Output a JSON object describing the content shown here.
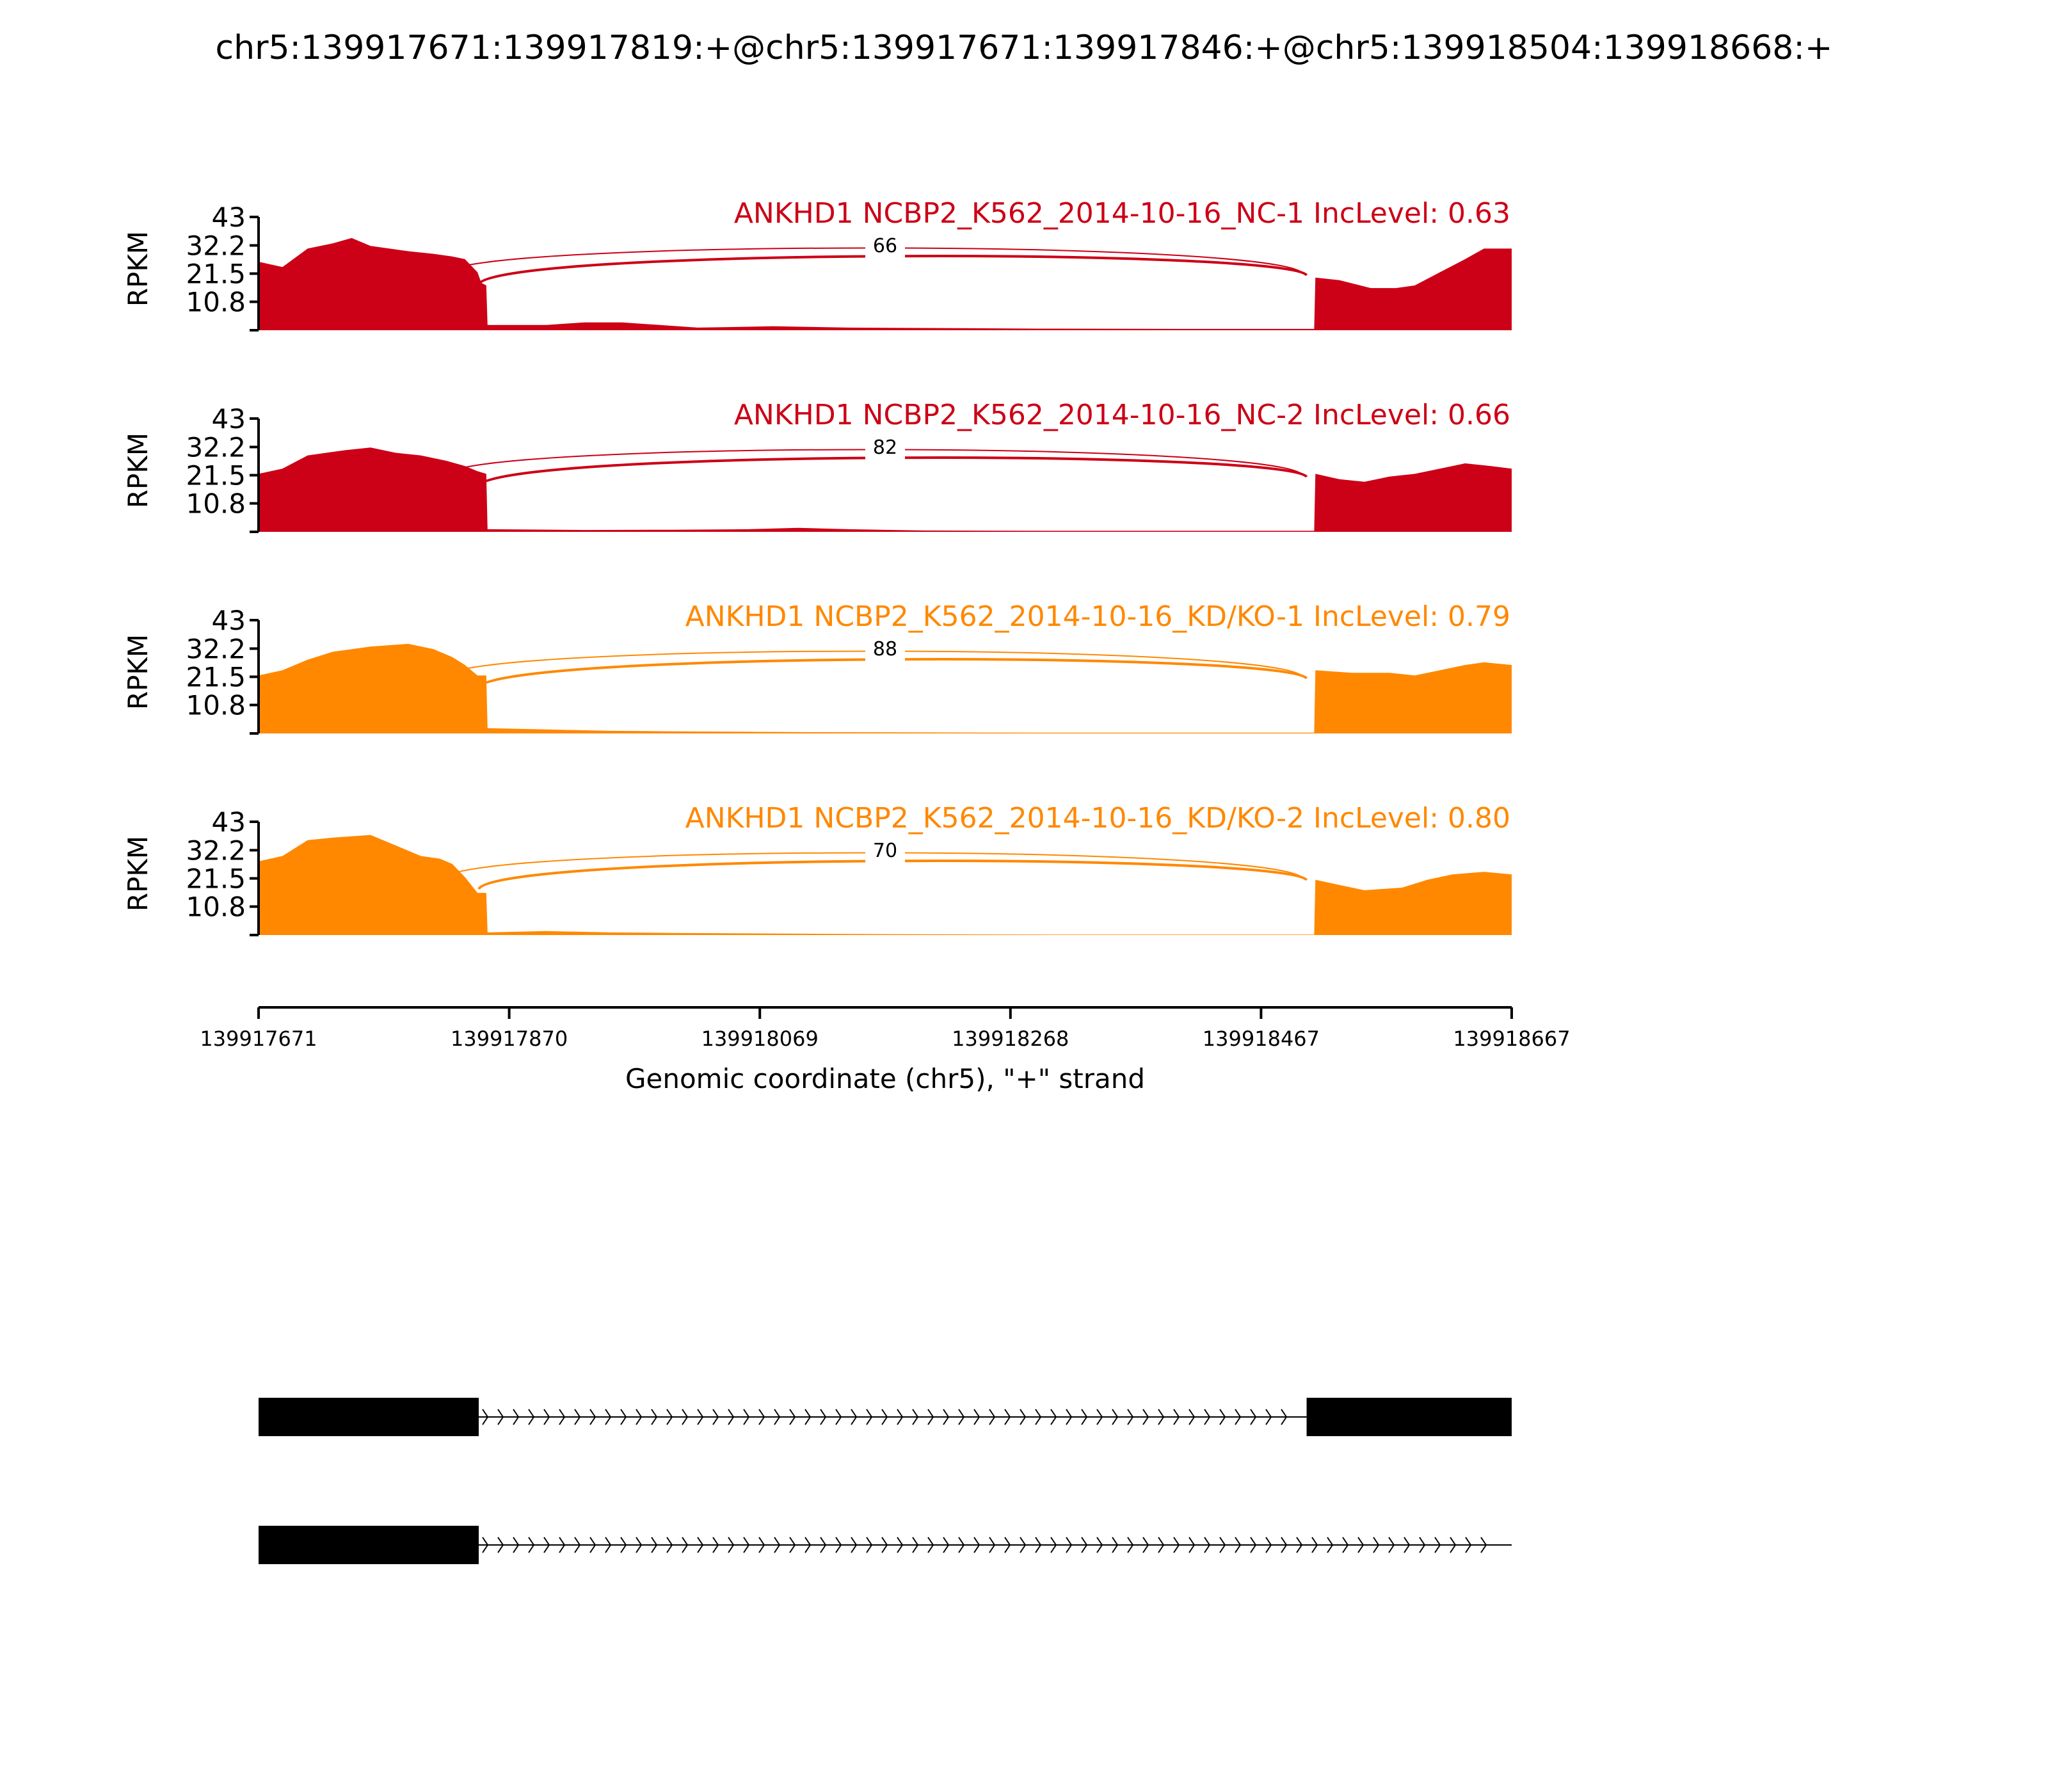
{
  "title": "chr5:139917671:139917819:+@chr5:139917671:139917846:+@chr5:139918504:139918668:+",
  "colors": {
    "nc": "#cc0016",
    "kd": "#ff8800",
    "axis": "#000000"
  },
  "x_axis": {
    "label": "Genomic coordinate (chr5), \"+\" strand",
    "range": [
      139917671,
      139918667
    ],
    "ticks": [
      "139917671",
      "139917870",
      "139918069",
      "139918268",
      "139918467",
      "139918667"
    ]
  },
  "chart_data": {
    "type": "area",
    "ylabel": "RPKM",
    "ylim": [
      0,
      43
    ],
    "yticks": [
      "43",
      "32.2",
      "21.5",
      "10.8"
    ],
    "x_range": [
      139917671,
      139918667
    ],
    "tracks": [
      {
        "name": "ANKHD1 NCBP2_K562_2014-10-16_NC-1 IncLevel: 0.63",
        "color_key": "nc",
        "junction_count": "66",
        "profile": [
          [
            139917671,
            26
          ],
          [
            139917690,
            24
          ],
          [
            139917710,
            31
          ],
          [
            139917730,
            33
          ],
          [
            139917745,
            35
          ],
          [
            139917760,
            32
          ],
          [
            139917790,
            30
          ],
          [
            139917810,
            29
          ],
          [
            139917825,
            28
          ],
          [
            139917835,
            27
          ],
          [
            139917845,
            22
          ],
          [
            139917848,
            18
          ],
          [
            139917852,
            17
          ],
          [
            139917853,
            2
          ],
          [
            139917900,
            2
          ],
          [
            139917930,
            3
          ],
          [
            139917960,
            3
          ],
          [
            139917990,
            2
          ],
          [
            139918020,
            1
          ],
          [
            139918080,
            1.5
          ],
          [
            139918140,
            1
          ],
          [
            139918230,
            0.8
          ],
          [
            139918290,
            0.6
          ],
          [
            139918400,
            0.5
          ],
          [
            139918500,
            0.5
          ],
          [
            139918510,
            0.5
          ],
          [
            139918511,
            20
          ],
          [
            139918530,
            19
          ],
          [
            139918555,
            16
          ],
          [
            139918575,
            16
          ],
          [
            139918590,
            17
          ],
          [
            139918610,
            22
          ],
          [
            139918630,
            27
          ],
          [
            139918645,
            31
          ],
          [
            139918667,
            31
          ]
        ]
      },
      {
        "name": "ANKHD1 NCBP2_K562_2014-10-16_NC-2 IncLevel: 0.66",
        "color_key": "nc",
        "junction_count": "82",
        "profile": [
          [
            139917671,
            22
          ],
          [
            139917690,
            24
          ],
          [
            139917710,
            29
          ],
          [
            139917740,
            31
          ],
          [
            139917760,
            32
          ],
          [
            139917780,
            30
          ],
          [
            139917800,
            29
          ],
          [
            139917820,
            27
          ],
          [
            139917835,
            25
          ],
          [
            139917845,
            23
          ],
          [
            139917852,
            22
          ],
          [
            139917853,
            1
          ],
          [
            139917930,
            0.7
          ],
          [
            139918000,
            0.8
          ],
          [
            139918060,
            1
          ],
          [
            139918100,
            1.5
          ],
          [
            139918140,
            1
          ],
          [
            139918200,
            0.5
          ],
          [
            139918300,
            0.4
          ],
          [
            139918400,
            0.4
          ],
          [
            139918510,
            0.4
          ],
          [
            139918511,
            22
          ],
          [
            139918530,
            20
          ],
          [
            139918550,
            19
          ],
          [
            139918570,
            21
          ],
          [
            139918590,
            22
          ],
          [
            139918610,
            24
          ],
          [
            139918630,
            26
          ],
          [
            139918650,
            25
          ],
          [
            139918667,
            24
          ]
        ]
      },
      {
        "name": "ANKHD1 NCBP2_K562_2014-10-16_KD/KO-1 IncLevel: 0.79",
        "color_key": "kd",
        "junction_count": "88",
        "profile": [
          [
            139917671,
            22
          ],
          [
            139917690,
            24
          ],
          [
            139917710,
            28
          ],
          [
            139917730,
            31
          ],
          [
            139917760,
            33
          ],
          [
            139917790,
            34
          ],
          [
            139917810,
            32
          ],
          [
            139917825,
            29
          ],
          [
            139917835,
            26
          ],
          [
            139917845,
            22
          ],
          [
            139917852,
            22
          ],
          [
            139917853,
            2
          ],
          [
            139917900,
            1.5
          ],
          [
            139917950,
            1
          ],
          [
            139918000,
            0.8
          ],
          [
            139918100,
            0.5
          ],
          [
            139918200,
            0.4
          ],
          [
            139918300,
            0.3
          ],
          [
            139918400,
            0.3
          ],
          [
            139918510,
            0.3
          ],
          [
            139918511,
            24
          ],
          [
            139918540,
            23
          ],
          [
            139918570,
            23
          ],
          [
            139918590,
            22
          ],
          [
            139918610,
            24
          ],
          [
            139918630,
            26
          ],
          [
            139918645,
            27
          ],
          [
            139918667,
            26
          ]
        ]
      },
      {
        "name": "ANKHD1 NCBP2_K562_2014-10-16_KD/KO-2 IncLevel: 0.80",
        "color_key": "kd",
        "junction_count": "70",
        "profile": [
          [
            139917671,
            28
          ],
          [
            139917690,
            30
          ],
          [
            139917710,
            36
          ],
          [
            139917730,
            37
          ],
          [
            139917760,
            38
          ],
          [
            139917780,
            34
          ],
          [
            139917800,
            30
          ],
          [
            139917815,
            29
          ],
          [
            139917825,
            27
          ],
          [
            139917835,
            22
          ],
          [
            139917845,
            16
          ],
          [
            139917852,
            16
          ],
          [
            139917853,
            1
          ],
          [
            139917900,
            1.5
          ],
          [
            139917950,
            1
          ],
          [
            139918000,
            0.8
          ],
          [
            139918100,
            0.5
          ],
          [
            139918200,
            0.3
          ],
          [
            139918300,
            0.2
          ],
          [
            139918400,
            0.2
          ],
          [
            139918510,
            0.2
          ],
          [
            139918511,
            21
          ],
          [
            139918530,
            19
          ],
          [
            139918550,
            17
          ],
          [
            139918580,
            18
          ],
          [
            139918600,
            21
          ],
          [
            139918620,
            23
          ],
          [
            139918645,
            24
          ],
          [
            139918667,
            23
          ]
        ]
      }
    ]
  },
  "gene_models": [
    {
      "exons": [
        [
          139917671,
          139917846
        ],
        [
          139918504,
          139918667
        ]
      ],
      "intron": [
        139917846,
        139918504
      ]
    },
    {
      "exons": [
        [
          139917671,
          139917846
        ]
      ],
      "intron": [
        139917846,
        139918667
      ]
    }
  ]
}
